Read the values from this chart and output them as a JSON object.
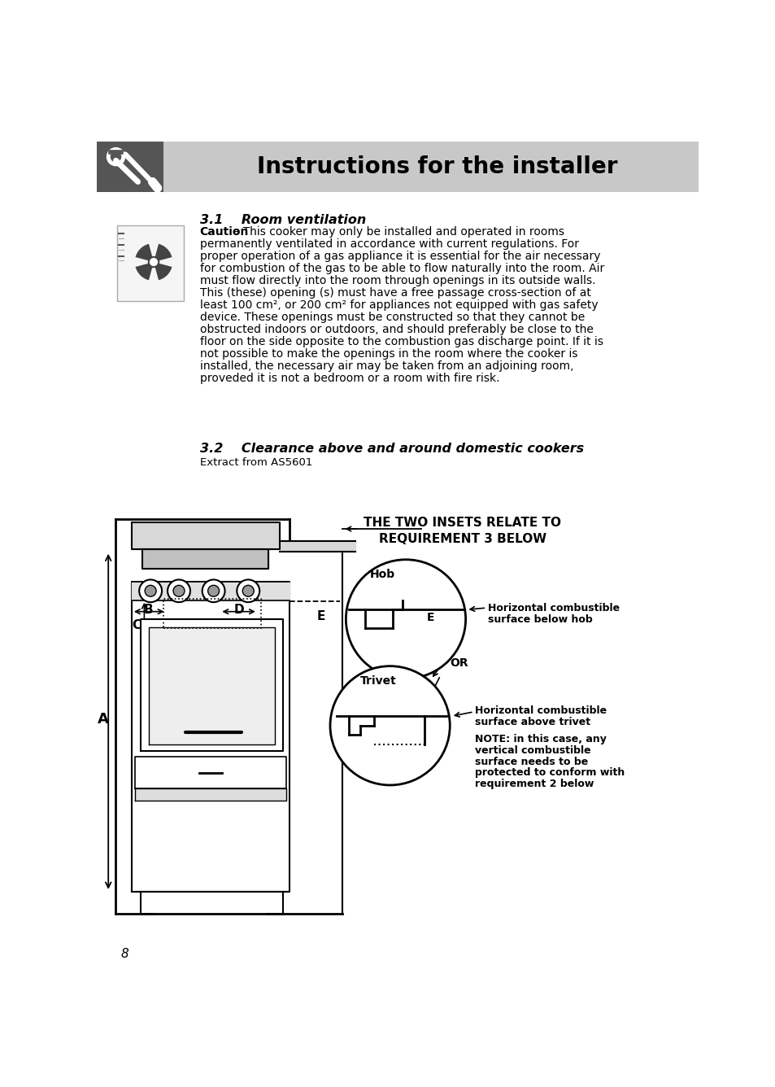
{
  "title": "Instructions for the installer",
  "header_bg": "#c8c8c8",
  "header_icon_bg": "#555555",
  "page_bg": "#ffffff",
  "section1_heading": "3.1    Room ventilation",
  "section2_heading": "3.2    Clearance above and around domestic cookers",
  "section2_sub": "Extract from AS5601",
  "diagram_note_line1": "THE TWO INSETS RELATE TO",
  "diagram_note_line2": "REQUIREMENT 3 BELOW",
  "label_hob": "Hob",
  "label_trivet": "Trivet",
  "label_or": "OR",
  "label_A": "A",
  "label_B": "B",
  "label_C": "C",
  "label_D": "D",
  "label_E": "E",
  "label_hcsh_1": "Horizontal combustible",
  "label_hcsh_2": "surface below hob",
  "label_hcsa_1": "Horizontal combustible",
  "label_hcsa_2": "surface above trivet",
  "label_note_1": "NOTE: in this case, any",
  "label_note_2": "vertical combustible",
  "label_note_3": "surface needs to be",
  "label_note_4": "protected to conform with",
  "label_note_5": "requirement 2 below",
  "page_number": "8",
  "caution_bold": "Caution",
  "body_lines": [
    " – This cooker may only be installed and operated in rooms",
    "permanently ventilated in accordance with current regulations. For",
    "proper operation of a gas appliance it is essential for the air necessary",
    "for combustion of the gas to be able to flow naturally into the room. Air",
    "must flow directly into the room through openings in its outside walls.",
    "This (these) opening (s) must have a free passage cross-section of at",
    "least 100 cm², or 200 cm² for appliances not equipped with gas safety",
    "device. These openings must be constructed so that they cannot be",
    "obstructed indoors or outdoors, and should preferably be close to the",
    "floor on the side opposite to the combustion gas discharge point. If it is",
    "not possible to make the openings in the room where the cooker is",
    "installed, the necessary air may be taken from an adjoining room,",
    "proveded it is not a bedroom or a room with fire risk."
  ]
}
